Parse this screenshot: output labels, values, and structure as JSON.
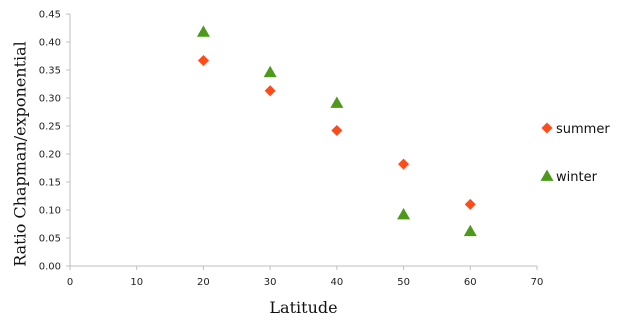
{
  "chart_data": {
    "type": "scatter",
    "xlabel": "Latitude",
    "ylabel": "Ratio Chapman/exponential",
    "xlim": [
      0,
      70
    ],
    "ylim": [
      0,
      0.45
    ],
    "x_ticks": [
      "0",
      "10",
      "20",
      "30",
      "40",
      "50",
      "60",
      "70"
    ],
    "y_ticks": [
      "0.00",
      "0.05",
      "0.10",
      "0.15",
      "0.20",
      "0.25",
      "0.30",
      "0.35",
      "0.40",
      "0.45"
    ],
    "grid": false,
    "legend_position": "right",
    "series": [
      {
        "name": "summer",
        "marker": "diamond",
        "color": "#ff4b1a",
        "points": [
          {
            "x": 20,
            "y": 0.367
          },
          {
            "x": 30,
            "y": 0.313
          },
          {
            "x": 40,
            "y": 0.242
          },
          {
            "x": 50,
            "y": 0.182
          },
          {
            "x": 60,
            "y": 0.11
          }
        ]
      },
      {
        "name": "winter",
        "marker": "triangle",
        "color": "#4d9a1b",
        "points": [
          {
            "x": 20,
            "y": 0.418
          },
          {
            "x": 30,
            "y": 0.346
          },
          {
            "x": 40,
            "y": 0.291
          },
          {
            "x": 50,
            "y": 0.092
          },
          {
            "x": 60,
            "y": 0.062
          }
        ]
      }
    ]
  }
}
